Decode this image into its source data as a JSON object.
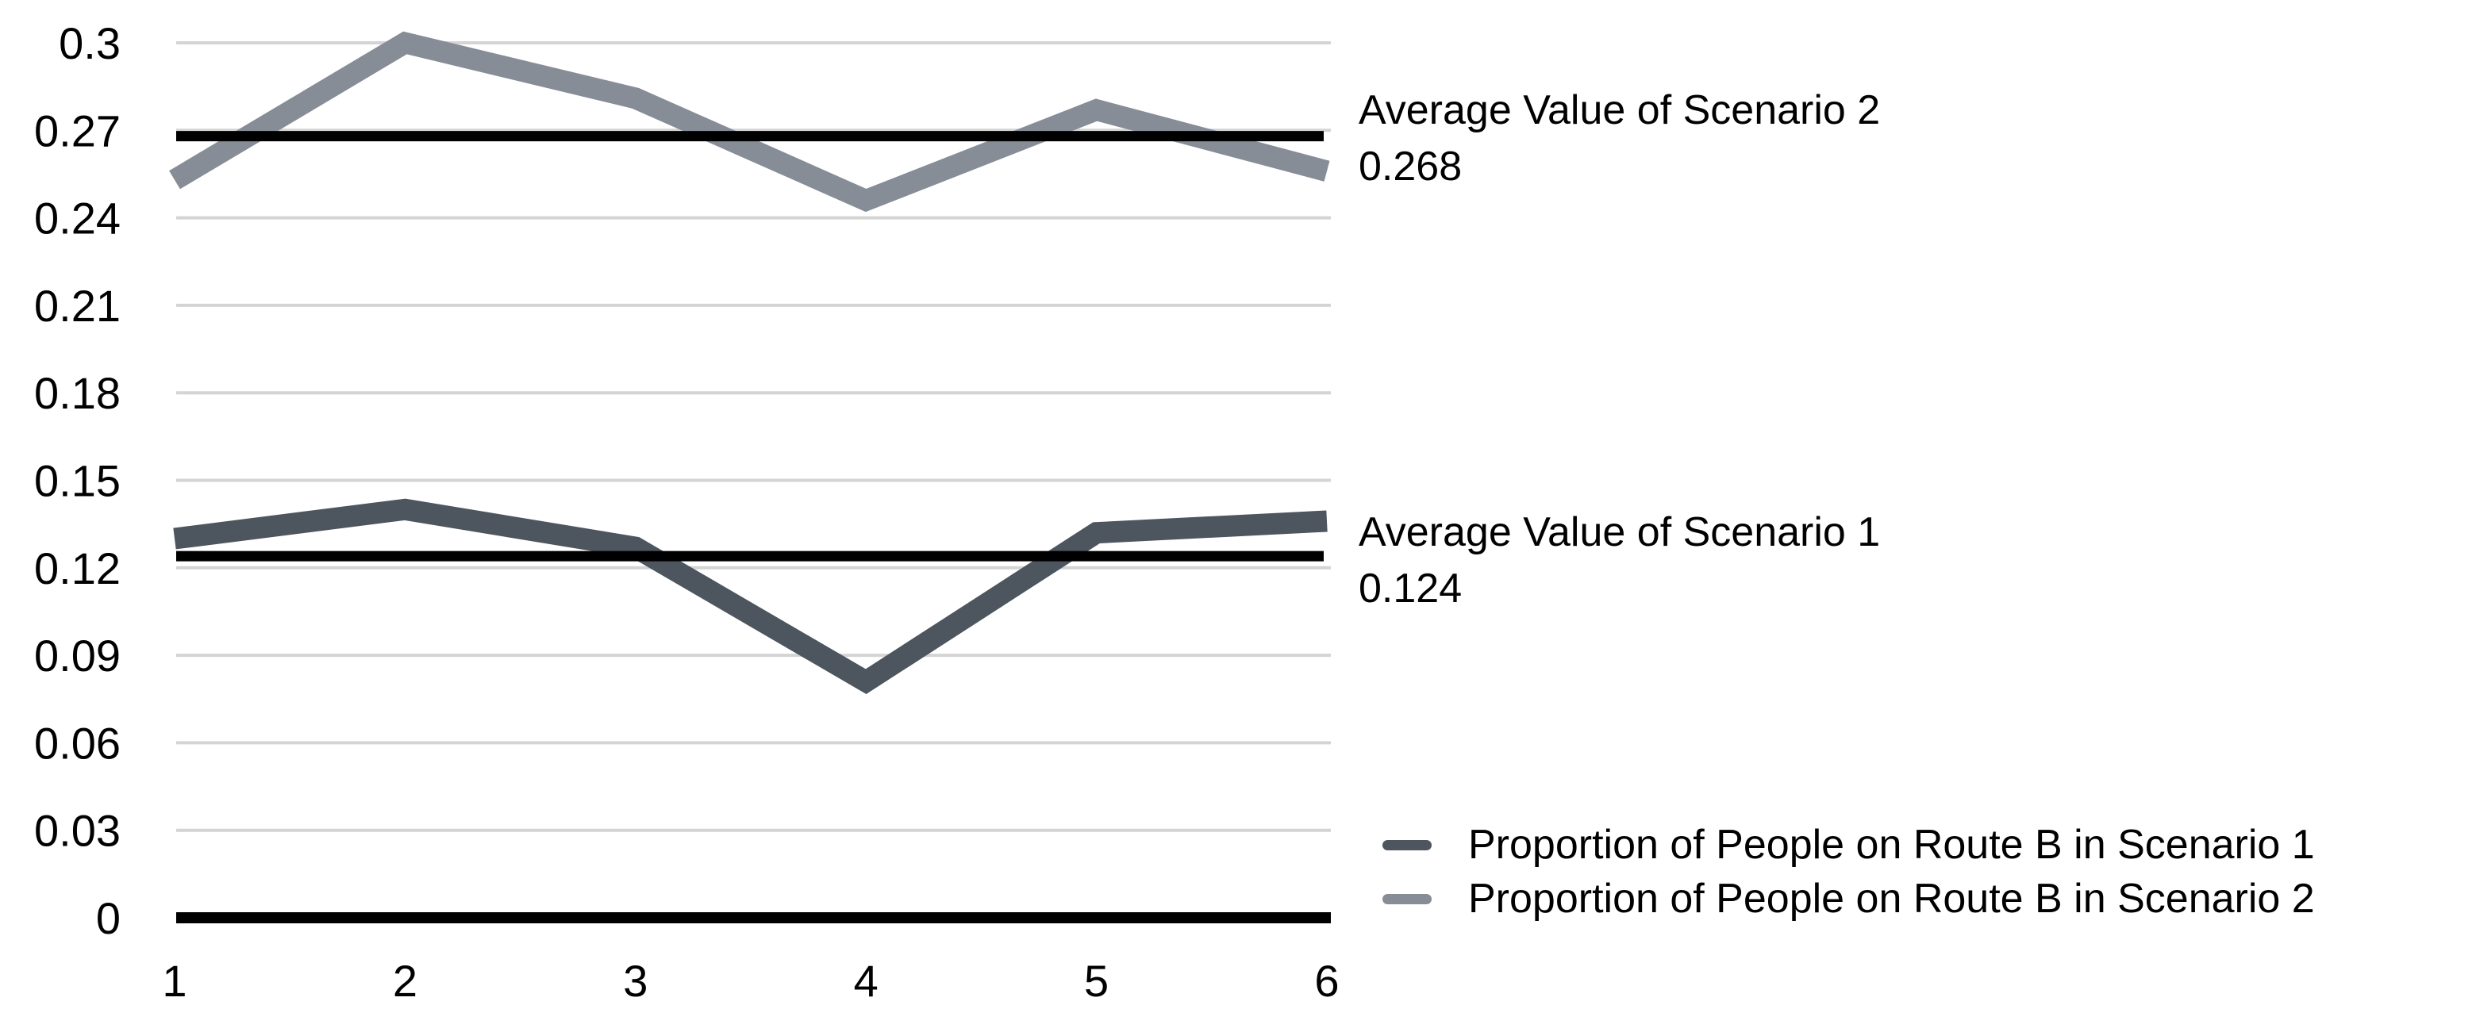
{
  "chart_data": {
    "type": "line",
    "x": [
      1,
      2,
      3,
      4,
      5,
      6
    ],
    "x_tick_labels": [
      "1",
      "2",
      "3",
      "4",
      "5",
      "6"
    ],
    "y_tick_labels": [
      "0",
      "0.03",
      "0.06",
      "0.09",
      "0.12",
      "0.15",
      "0.18",
      "0.21",
      "0.24",
      "0.27",
      "0.3"
    ],
    "ylim": [
      0,
      0.3
    ],
    "grid": "horizontal-only",
    "legend_position": "bottom-right",
    "series": [
      {
        "name": "Proportion of People on Route B in Scenario 1",
        "color": "#4d555e",
        "values": [
          0.13,
          0.14,
          0.127,
          0.081,
          0.132,
          0.136
        ]
      },
      {
        "name": "Proportion of People on Route B in Scenario 2",
        "color": "#868d97",
        "values": [
          0.253,
          0.3,
          0.281,
          0.246,
          0.277,
          0.256
        ]
      }
    ],
    "reference_lines": [
      {
        "label": "Average Value of Scenario 1",
        "value": 0.124,
        "color": "#000000"
      },
      {
        "label": "Average Value of Scenario 2",
        "value": 0.268,
        "color": "#000000"
      }
    ]
  },
  "annotations": {
    "scenario2": {
      "label": "Average Value of Scenario 2",
      "value": "0.268"
    },
    "scenario1": {
      "label": "Average Value of Scenario 1",
      "value": "0.124"
    }
  },
  "colors": {
    "gridline": "#d4d4d4",
    "axis": "#000000",
    "reference_line": "#000000",
    "text": "#000000",
    "background": "#ffffff"
  }
}
